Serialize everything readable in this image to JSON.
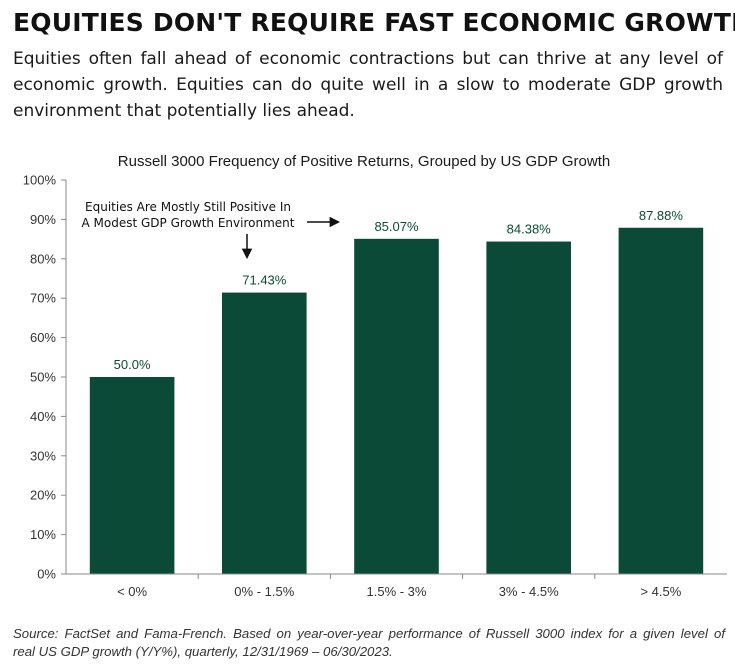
{
  "header": {
    "title": "EQUITIES DON'T REQUIRE FAST ECONOMIC GROWTH",
    "lede_lines": [
      "Equities often fall ahead of economic contractions but can thrive at any level of",
      "economic growth. Equities can do quite well in a slow to moderate GDP growth",
      "environment that potentially lies ahead."
    ]
  },
  "chart_data": {
    "type": "bar",
    "title": "Russell 3000 Frequency of Positive Returns, Grouped by US GDP Growth",
    "xlabel": "",
    "ylabel": "",
    "categories": [
      "< 0%",
      "0% - 1.5%",
      "1.5% - 3%",
      "3% - 4.5%",
      "> 4.5%"
    ],
    "values": [
      50.0,
      71.43,
      85.07,
      84.38,
      87.88
    ],
    "value_labels": [
      "50.0%",
      "71.43%",
      "85.07%",
      "84.38%",
      "87.88%"
    ],
    "ylim": [
      0,
      100
    ],
    "yticks": [
      "0%",
      "10%",
      "20%",
      "30%",
      "40%",
      "50%",
      "60%",
      "70%",
      "80%",
      "90%",
      "100%"
    ],
    "grid": false,
    "legend": "none",
    "bar_color": "#0b4a37",
    "label_color": "#0b4a37",
    "annotation": {
      "lines": [
        "Equities Are Mostly Still Positive In",
        "A Modest GDP Growth Environment"
      ],
      "points_to": [
        "0% - 1.5%",
        "1.5% - 3%"
      ]
    }
  },
  "footer": {
    "source_lines": [
      "Source: FactSet and Fama-French. Based on year-over-year performance of Russell 3000 index for a given level of",
      "real US GDP growth (Y/Y%), quarterly, 12/31/1969 – 06/30/2023."
    ]
  }
}
